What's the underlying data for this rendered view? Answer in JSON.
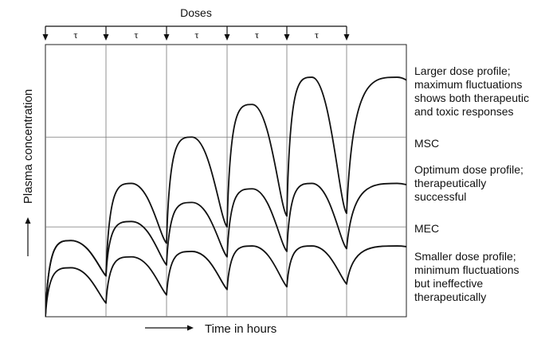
{
  "doses_label": "Doses",
  "interval_symbol": "τ",
  "dose_interval_count": 5,
  "y_axis_label": "Plasma concentration",
  "x_axis_label": "Time in hours",
  "thresholds": {
    "msc": "MSC",
    "mec": "MEC"
  },
  "profiles": [
    {
      "id": "larger",
      "lines": [
        "Larger dose profile;",
        "maximum fluctuations",
        "shows both therapeutic",
        "and toxic responses"
      ],
      "peaks": [
        0.28,
        0.49,
        0.66,
        0.78,
        0.88,
        0.88
      ],
      "troughs": [
        0.0,
        0.15,
        0.27,
        0.33,
        0.37,
        0.38,
        0.38,
        0.38
      ]
    },
    {
      "id": "optimum",
      "lines": [
        "Optimum dose profile;",
        "therapeutically",
        "successful"
      ],
      "peaks": [
        0.28,
        0.35,
        0.42,
        0.47,
        0.49,
        0.49
      ],
      "troughs": [
        0.0,
        0.15,
        0.19,
        0.22,
        0.24,
        0.25,
        0.25,
        0.25
      ]
    },
    {
      "id": "smaller",
      "lines": [
        "Smaller dose profile;",
        "minimum fluctuations",
        "but ineffective",
        "therapeutically"
      ],
      "peaks": [
        0.18,
        0.22,
        0.24,
        0.26,
        0.26,
        0.26
      ],
      "troughs": [
        0.0,
        0.05,
        0.08,
        0.1,
        0.11,
        0.12,
        0.12,
        0.12
      ]
    }
  ],
  "levels": {
    "msc": 0.66,
    "mec": 0.33
  }
}
